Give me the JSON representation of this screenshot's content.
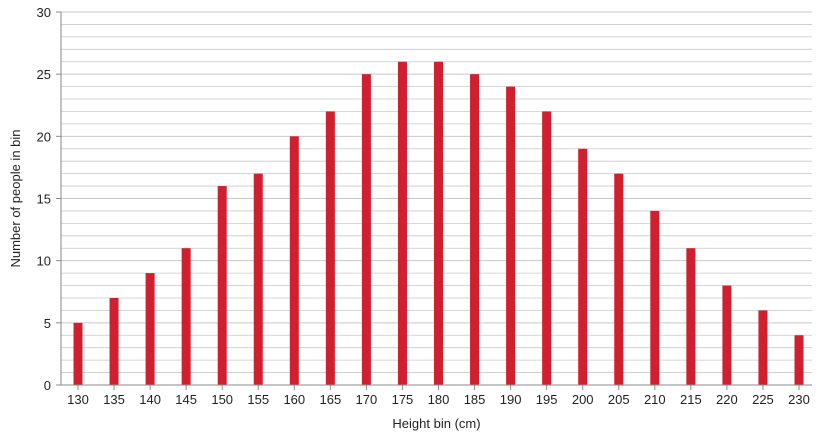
{
  "chart_data": {
    "type": "bar",
    "title": "",
    "xlabel": "Height bin (cm)",
    "ylabel": "Number of people in bin",
    "categories": [
      "130",
      "135",
      "140",
      "145",
      "150",
      "155",
      "160",
      "165",
      "170",
      "175",
      "180",
      "185",
      "190",
      "195",
      "200",
      "205",
      "210",
      "215",
      "220",
      "225",
      "230"
    ],
    "values": [
      5,
      7,
      9,
      11,
      16,
      17,
      20,
      22,
      25,
      26,
      26,
      25,
      24,
      22,
      19,
      17,
      14,
      11,
      8,
      6,
      4
    ],
    "ylim": [
      0,
      30
    ],
    "yticks": [
      0,
      5,
      10,
      15,
      20,
      25,
      30
    ],
    "grid": true,
    "minor_grid_step": 1,
    "legend": "none",
    "colors": {
      "bar": "#d0202f",
      "grid": "#c8c8c8",
      "axis": "#8a8a8a"
    }
  }
}
